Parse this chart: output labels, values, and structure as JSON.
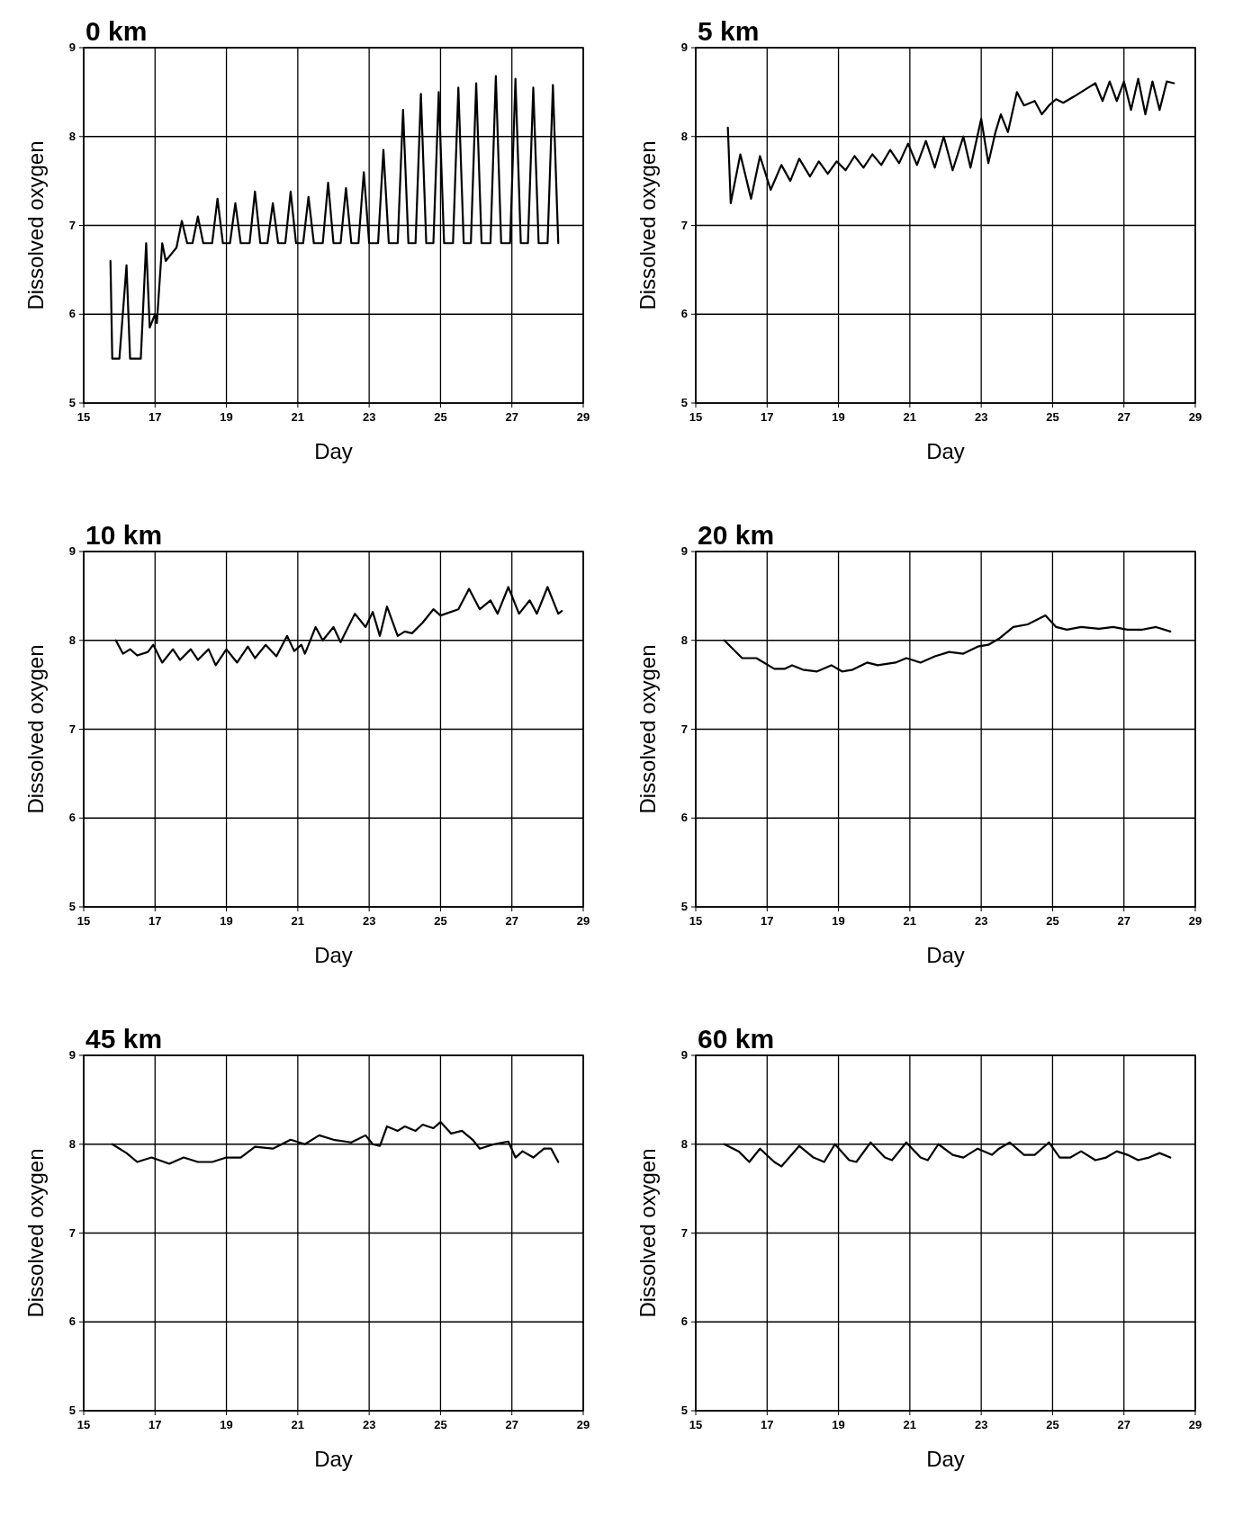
{
  "chart_data": [
    {
      "type": "line",
      "title": "0 km",
      "xlabel": "Day",
      "ylabel": "Dissolved oxygen",
      "xlim": [
        15,
        29
      ],
      "ylim": [
        5,
        9
      ],
      "xticks": [
        15,
        17,
        19,
        21,
        23,
        25,
        27,
        29
      ],
      "yticks": [
        5,
        6,
        7,
        8,
        9
      ],
      "grid": true,
      "series": [
        {
          "color": "#000000",
          "x": [
            15.75,
            15.8,
            16.0,
            16.2,
            16.3,
            16.6,
            16.75,
            16.85,
            17.0,
            17.05,
            17.2,
            17.3,
            17.5,
            17.6,
            17.75,
            17.9,
            18.05,
            18.2,
            18.35,
            18.6,
            18.75,
            18.9,
            19.1,
            19.25,
            19.4,
            19.65,
            19.8,
            19.95,
            20.15,
            20.3,
            20.45,
            20.65,
            20.8,
            20.95,
            21.15,
            21.3,
            21.45,
            21.7,
            21.85,
            22.0,
            22.2,
            22.35,
            22.5,
            22.7,
            22.85,
            23.0,
            23.25,
            23.4,
            23.55,
            23.8,
            23.95,
            24.1,
            24.3,
            24.45,
            24.6,
            24.8,
            24.95,
            25.1,
            25.35,
            25.5,
            25.65,
            25.85,
            26.0,
            26.15,
            26.4,
            26.55,
            26.7,
            26.95,
            27.1,
            27.25,
            27.45,
            27.6,
            27.75,
            28.0,
            28.15,
            28.3
          ],
          "values": [
            6.6,
            5.5,
            5.5,
            6.55,
            5.5,
            5.5,
            6.8,
            5.85,
            6.0,
            5.9,
            6.8,
            6.6,
            6.7,
            6.75,
            7.05,
            6.8,
            6.8,
            7.1,
            6.8,
            6.8,
            7.3,
            6.8,
            6.8,
            7.25,
            6.8,
            6.8,
            7.38,
            6.8,
            6.8,
            7.25,
            6.8,
            6.8,
            7.38,
            6.8,
            6.8,
            7.32,
            6.8,
            6.8,
            7.48,
            6.8,
            6.8,
            7.42,
            6.8,
            6.8,
            7.6,
            6.8,
            6.8,
            7.85,
            6.8,
            6.8,
            8.3,
            6.8,
            6.8,
            8.48,
            6.8,
            6.8,
            8.5,
            6.8,
            6.8,
            8.55,
            6.8,
            6.8,
            8.6,
            6.8,
            6.8,
            8.68,
            6.8,
            6.8,
            8.65,
            6.8,
            6.8,
            8.55,
            6.8,
            6.8,
            8.58,
            6.8
          ]
        }
      ]
    },
    {
      "type": "line",
      "title": "5 km",
      "xlabel": "Day",
      "ylabel": "Dissolved oxygen",
      "xlim": [
        15,
        29
      ],
      "ylim": [
        5,
        9
      ],
      "xticks": [
        15,
        17,
        19,
        21,
        23,
        25,
        27,
        29
      ],
      "yticks": [
        5,
        6,
        7,
        8,
        9
      ],
      "grid": true,
      "series": [
        {
          "color": "#000000",
          "x": [
            15.9,
            15.98,
            16.25,
            16.55,
            16.8,
            17.1,
            17.4,
            17.65,
            17.9,
            18.2,
            18.45,
            18.7,
            18.95,
            19.2,
            19.45,
            19.7,
            19.95,
            20.2,
            20.45,
            20.7,
            20.95,
            21.2,
            21.45,
            21.7,
            21.95,
            22.2,
            22.5,
            22.7,
            23.0,
            23.2,
            23.4,
            23.55,
            23.75,
            24.0,
            24.2,
            24.5,
            24.7,
            24.9,
            25.1,
            25.3,
            25.6,
            25.8,
            26.0,
            26.2,
            26.4,
            26.6,
            26.8,
            27.0,
            27.2,
            27.4,
            27.6,
            27.8,
            28.0,
            28.2,
            28.4
          ],
          "values": [
            8.1,
            7.25,
            7.8,
            7.3,
            7.78,
            7.4,
            7.68,
            7.5,
            7.75,
            7.55,
            7.72,
            7.58,
            7.72,
            7.62,
            7.78,
            7.65,
            7.8,
            7.68,
            7.85,
            7.7,
            7.92,
            7.68,
            7.95,
            7.65,
            8.0,
            7.62,
            8.0,
            7.65,
            8.2,
            7.7,
            8.05,
            8.25,
            8.05,
            8.5,
            8.35,
            8.4,
            8.25,
            8.35,
            8.42,
            8.38,
            8.45,
            8.5,
            8.55,
            8.6,
            8.4,
            8.62,
            8.4,
            8.62,
            8.3,
            8.65,
            8.25,
            8.62,
            8.3,
            8.62,
            8.6
          ]
        }
      ]
    },
    {
      "type": "line",
      "title": "10 km",
      "xlabel": "Day",
      "ylabel": "Dissolved oxygen",
      "xlim": [
        15,
        29
      ],
      "ylim": [
        5,
        9
      ],
      "xticks": [
        15,
        17,
        19,
        21,
        23,
        25,
        27,
        29
      ],
      "yticks": [
        5,
        6,
        7,
        8,
        9
      ],
      "grid": true,
      "series": [
        {
          "color": "#000000",
          "x": [
            15.9,
            16.1,
            16.3,
            16.5,
            16.8,
            16.95,
            17.2,
            17.5,
            17.7,
            18.0,
            18.2,
            18.5,
            18.7,
            19.0,
            19.3,
            19.6,
            19.8,
            20.1,
            20.4,
            20.7,
            20.9,
            21.1,
            21.2,
            21.5,
            21.7,
            22.0,
            22.2,
            22.6,
            22.9,
            23.1,
            23.3,
            23.5,
            23.8,
            24.0,
            24.2,
            24.5,
            24.8,
            25.0,
            25.5,
            25.8,
            26.1,
            26.4,
            26.6,
            26.9,
            27.2,
            27.5,
            27.7,
            28.0,
            28.3,
            28.4
          ],
          "values": [
            8.0,
            7.85,
            7.9,
            7.83,
            7.87,
            7.95,
            7.75,
            7.9,
            7.78,
            7.9,
            7.78,
            7.9,
            7.72,
            7.9,
            7.75,
            7.93,
            7.8,
            7.95,
            7.82,
            8.05,
            7.88,
            7.95,
            7.85,
            8.15,
            8.0,
            8.15,
            7.98,
            8.3,
            8.15,
            8.32,
            8.05,
            8.38,
            8.05,
            8.1,
            8.08,
            8.2,
            8.35,
            8.28,
            8.35,
            8.58,
            8.35,
            8.45,
            8.3,
            8.6,
            8.3,
            8.45,
            8.3,
            8.6,
            8.3,
            8.33
          ]
        }
      ]
    },
    {
      "type": "line",
      "title": "20 km",
      "xlabel": "Day",
      "ylabel": "Dissolved oxygen",
      "xlim": [
        15,
        29
      ],
      "ylim": [
        5,
        9
      ],
      "xticks": [
        15,
        17,
        19,
        21,
        23,
        25,
        27,
        29
      ],
      "yticks": [
        5,
        6,
        7,
        8,
        9
      ],
      "grid": true,
      "series": [
        {
          "color": "#000000",
          "x": [
            15.8,
            16.3,
            16.7,
            17.2,
            17.5,
            17.7,
            18.0,
            18.4,
            18.8,
            19.1,
            19.4,
            19.8,
            20.1,
            20.6,
            20.9,
            21.3,
            21.7,
            22.1,
            22.5,
            22.9,
            23.2,
            23.5,
            23.9,
            24.3,
            24.8,
            25.1,
            25.4,
            25.8,
            26.3,
            26.7,
            27.1,
            27.5,
            27.9,
            28.3
          ],
          "values": [
            8.0,
            7.8,
            7.8,
            7.68,
            7.68,
            7.72,
            7.67,
            7.65,
            7.72,
            7.65,
            7.67,
            7.75,
            7.72,
            7.75,
            7.8,
            7.75,
            7.82,
            7.87,
            7.85,
            7.93,
            7.95,
            8.02,
            8.15,
            8.18,
            8.28,
            8.15,
            8.12,
            8.15,
            8.13,
            8.15,
            8.12,
            8.12,
            8.15,
            8.1
          ]
        }
      ]
    },
    {
      "type": "line",
      "title": "45 km",
      "xlabel": "Day",
      "ylabel": "Dissolved oxygen",
      "xlim": [
        15,
        29
      ],
      "ylim": [
        5,
        9
      ],
      "xticks": [
        15,
        17,
        19,
        21,
        23,
        25,
        27,
        29
      ],
      "yticks": [
        5,
        6,
        7,
        8,
        9
      ],
      "grid": true,
      "series": [
        {
          "color": "#000000",
          "x": [
            15.8,
            16.2,
            16.5,
            16.9,
            17.4,
            17.8,
            18.2,
            18.6,
            19.0,
            19.4,
            19.8,
            20.3,
            20.8,
            21.2,
            21.6,
            22.0,
            22.5,
            22.9,
            23.1,
            23.3,
            23.5,
            23.8,
            24.0,
            24.3,
            24.5,
            24.8,
            25.0,
            25.3,
            25.6,
            25.9,
            26.1,
            26.5,
            26.9,
            27.1,
            27.3,
            27.6,
            27.9,
            28.1,
            28.3
          ],
          "values": [
            8.0,
            7.9,
            7.8,
            7.85,
            7.78,
            7.85,
            7.8,
            7.8,
            7.85,
            7.85,
            7.97,
            7.95,
            8.05,
            8.0,
            8.1,
            8.05,
            8.02,
            8.1,
            8.0,
            7.98,
            8.2,
            8.15,
            8.2,
            8.15,
            8.22,
            8.18,
            8.25,
            8.12,
            8.15,
            8.05,
            7.95,
            8.0,
            8.03,
            7.85,
            7.92,
            7.85,
            7.95,
            7.95,
            7.8
          ]
        }
      ]
    },
    {
      "type": "line",
      "title": "60 km",
      "xlabel": "Day",
      "ylabel": "Dissolved oxygen",
      "xlim": [
        15,
        29
      ],
      "ylim": [
        5,
        9
      ],
      "xticks": [
        15,
        17,
        19,
        21,
        23,
        25,
        27,
        29
      ],
      "yticks": [
        5,
        6,
        7,
        8,
        9
      ],
      "grid": true,
      "series": [
        {
          "color": "#000000",
          "x": [
            15.8,
            16.2,
            16.5,
            16.8,
            17.2,
            17.4,
            17.9,
            18.3,
            18.6,
            18.9,
            19.3,
            19.5,
            19.9,
            20.3,
            20.5,
            20.9,
            21.3,
            21.5,
            21.8,
            22.2,
            22.5,
            22.9,
            23.3,
            23.5,
            23.8,
            24.2,
            24.5,
            24.9,
            25.2,
            25.5,
            25.8,
            26.2,
            26.5,
            26.8,
            27.1,
            27.4,
            27.7,
            28.0,
            28.3
          ],
          "values": [
            8.0,
            7.92,
            7.8,
            7.95,
            7.8,
            7.75,
            7.98,
            7.85,
            7.8,
            8.0,
            7.82,
            7.8,
            8.02,
            7.85,
            7.82,
            8.02,
            7.85,
            7.82,
            8.0,
            7.88,
            7.85,
            7.95,
            7.88,
            7.95,
            8.02,
            7.88,
            7.88,
            8.02,
            7.85,
            7.85,
            7.92,
            7.82,
            7.85,
            7.92,
            7.88,
            7.82,
            7.85,
            7.9,
            7.85
          ]
        }
      ]
    }
  ]
}
